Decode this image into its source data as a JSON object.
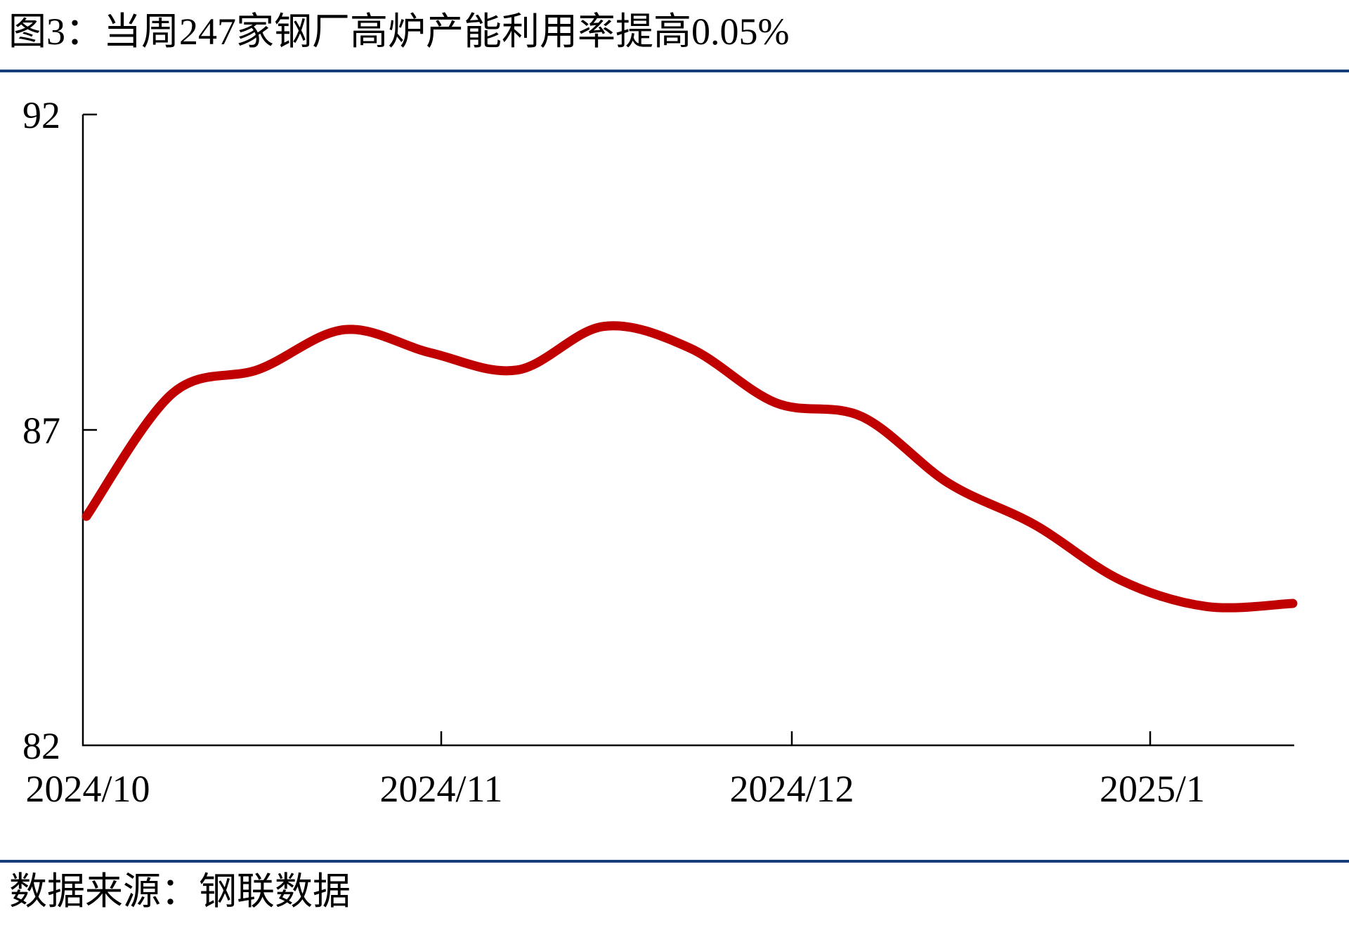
{
  "figure": {
    "title": "图3：当周247家钢厂高炉产能利用率提高0.05%",
    "source": "数据来源：钢联数据"
  },
  "chart_data": {
    "type": "line",
    "title": "当周247家钢厂高炉产能利用率提高0.05%",
    "values": [
      85.63,
      87.58,
      87.96,
      88.59,
      88.22,
      87.95,
      88.64,
      88.3,
      87.43,
      87.21,
      86.16,
      85.5,
      84.62,
      84.2,
      84.25
    ],
    "frequency": "weekly",
    "x_tick_labels": [
      "2024/10",
      "2024/11",
      "2024/12",
      "2025/1"
    ],
    "y_tick_labels": [
      "92",
      "87",
      "82"
    ],
    "ylim": [
      82,
      92
    ],
    "xlabel": "",
    "ylabel": "",
    "grid": false,
    "legend_position": "none",
    "line_color": "#c00000",
    "axis_color": "#000000",
    "last_week_change": "+0.05"
  }
}
